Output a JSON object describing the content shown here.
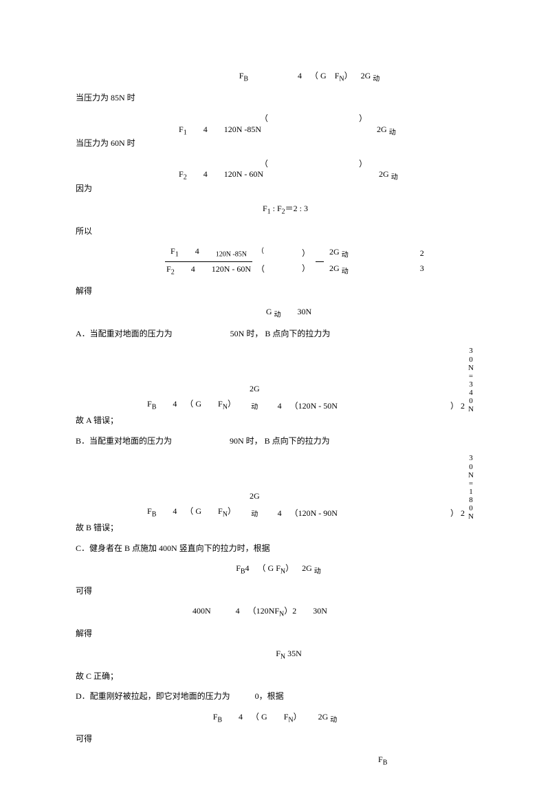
{
  "eq_header": "F<sub>B</sub>      4 （ G F<sub>N</sub>） 2G <sub>动</sub>",
  "line1_label": "当压力为 85N 时",
  "eq1": "F<sub>1</sub>  4  120N -85N              2G <sub>动</sub>",
  "eq1_paren": "    （           ）",
  "line2_label": "当压力为 60N 时",
  "eq2": "F<sub>2</sub>  4  120N - 60N              2G <sub>动</sub>",
  "eq2_paren": "    （           ）",
  "line3_label": "因为",
  "eq3": "F<sub>1</sub> : F<sub>2</sub>＝2 : 3",
  "line4_label": "所以",
  "frac_num": "F<sub>1</sub>  4  <sub>120N -85N</sub>",
  "frac_num_paren1": "（",
  "frac_num_paren2": "）",
  "frac_den": "F<sub>2</sub>  4  120N - 60N",
  "frac_den_paren1": "（",
  "frac_den_paren2": "）",
  "frac_right_top": "2G <sub>动</sub>",
  "frac_right_bot": "2G <sub>动</sub>",
  "frac_result_top": "2",
  "frac_result_bot": "3",
  "line5_label": "解得",
  "eq5": "G <sub>动</sub>  30N",
  "optA": "A．当配重对地面的压力为       50N 时， B 点向下的拉力为",
  "optA_col": "3\n0\nN\n=\n3\n4\n0\nN",
  "optA_eq_left": "F<sub>B</sub>  4 （ G  F<sub>N</sub>）",
  "optA_eq_mid": "2G\n<sub>动</sub>",
  "optA_eq_right": "4 （120N - 50N",
  "optA_eq_paren": "） 2",
  "optA_wrong": "故 A 错误；",
  "optB": "B．当配重对地面的压力为       90N 时， B 点向下的拉力为",
  "optB_col": "3\n0\nN\n=\n1\n8\n0\nN",
  "optB_eq_left": "F<sub>B</sub>  4 （ G  F<sub>N</sub>）",
  "optB_eq_right": "4 （120N - 90N",
  "optB_eq_paren": "） 2",
  "optB_wrong": "故 B 错误；",
  "optC": "C．健身者在 B 点施加 400N 竖直向下的拉力时，根据",
  "optC_eq1": "F<sub>B</sub>4 （ G F<sub>N</sub>） 2G <sub>动</sub>",
  "optC_label2": "可得",
  "optC_eq2": "400N   4 （120NF<sub>N</sub>）2  30N",
  "optC_label3": "解得",
  "optC_eq3": "F<sub>N</sub> 35N",
  "optC_right": "故 C 正确；",
  "optD": "D．配重刚好被拉起，即它对地面的压力为   0，根据",
  "optD_eq": "F<sub>B</sub>  4 （ G  F<sub>N</sub>）  2G <sub>动</sub>",
  "optD_label": "可得",
  "optD_fb": "F<sub>B</sub>"
}
